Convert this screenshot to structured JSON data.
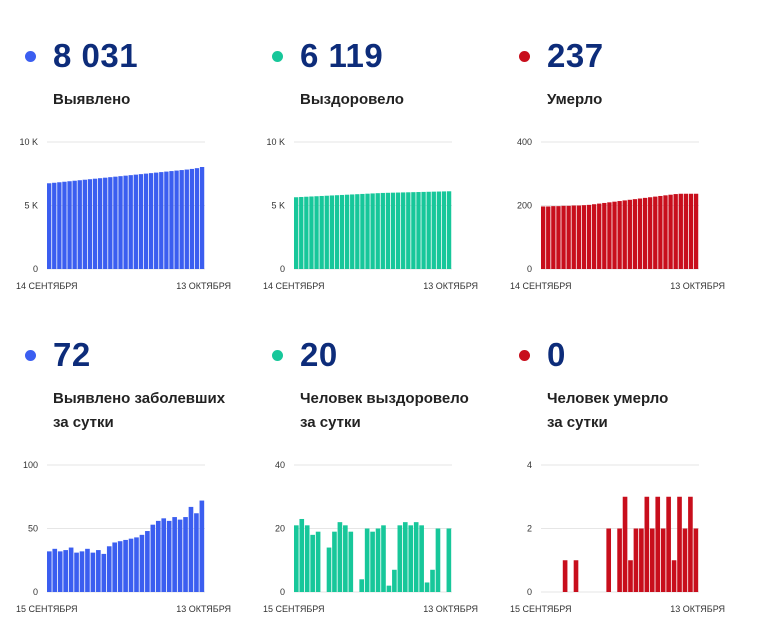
{
  "colors": {
    "blue": "#3b5ef0",
    "teal": "#17c79a",
    "red": "#c80e1c",
    "number": "#0d2c7a"
  },
  "cards": [
    {
      "number": "8 031",
      "label_line1": "Выявлено",
      "label_line2": "",
      "color": "#3b5ef0",
      "icon": "blue-dot-icon"
    },
    {
      "number": "6 119",
      "label_line1": "Выздоровело",
      "label_line2": "",
      "color": "#17c79a",
      "icon": "teal-dot-icon"
    },
    {
      "number": "237",
      "label_line1": "Умерло",
      "label_line2": "",
      "color": "#c80e1c",
      "icon": "red-dot-icon"
    },
    {
      "number": "72",
      "label_line1": "Выявлено заболевших",
      "label_line2": "за сутки",
      "color": "#3b5ef0",
      "icon": "blue-dot-icon"
    },
    {
      "number": "20",
      "label_line1": "Человек выздоровело",
      "label_line2": "за сутки",
      "color": "#17c79a",
      "icon": "teal-dot-icon"
    },
    {
      "number": "0",
      "label_line1": "Человек умерло",
      "label_line2": "за сутки",
      "color": "#c80e1c",
      "icon": "red-dot-icon"
    }
  ],
  "chart_data": [
    {
      "type": "bar",
      "color": "#3b5ef0",
      "x_start_label": "14 СЕНТЯБРЯ",
      "x_end_label": "13 ОКТЯБРЯ",
      "ylim": [
        0,
        10000
      ],
      "yticks": [
        0,
        5000,
        10000
      ],
      "ytick_labels": [
        "0",
        "5 K",
        "10 K"
      ],
      "values": [
        6750,
        6790,
        6830,
        6870,
        6910,
        6950,
        6990,
        7030,
        7070,
        7110,
        7150,
        7190,
        7230,
        7270,
        7310,
        7350,
        7390,
        7430,
        7470,
        7510,
        7550,
        7590,
        7630,
        7670,
        7710,
        7750,
        7790,
        7830,
        7880,
        7940,
        8031
      ]
    },
    {
      "type": "bar",
      "color": "#17c79a",
      "x_start_label": "14 СЕНТЯБРЯ",
      "x_end_label": "13 ОКТЯБРЯ",
      "ylim": [
        0,
        10000
      ],
      "yticks": [
        0,
        5000,
        10000
      ],
      "ytick_labels": [
        "0",
        "5 K",
        "10 K"
      ],
      "values": [
        5650,
        5670,
        5690,
        5710,
        5730,
        5750,
        5770,
        5790,
        5810,
        5830,
        5850,
        5870,
        5890,
        5910,
        5930,
        5950,
        5970,
        5990,
        6000,
        6010,
        6020,
        6030,
        6040,
        6050,
        6060,
        6070,
        6080,
        6090,
        6099,
        6109,
        6119
      ]
    },
    {
      "type": "bar",
      "color": "#c80e1c",
      "x_start_label": "14 СЕНТЯБРЯ",
      "x_end_label": "13 ОКТЯБРЯ",
      "ylim": [
        0,
        400
      ],
      "yticks": [
        0,
        200,
        400
      ],
      "ytick_labels": [
        "0",
        "200",
        "400"
      ],
      "values": [
        197,
        197,
        198,
        198,
        199,
        199,
        200,
        200,
        201,
        202,
        204,
        206,
        208,
        210,
        212,
        214,
        216,
        218,
        220,
        222,
        224,
        226,
        228,
        230,
        232,
        234,
        236,
        237,
        237,
        237,
        237
      ]
    },
    {
      "type": "bar",
      "color": "#3b5ef0",
      "x_start_label": "15 СЕНТЯБРЯ",
      "x_end_label": "13 ОКТЯБРЯ",
      "ylim": [
        0,
        100
      ],
      "yticks": [
        0,
        50,
        100
      ],
      "ytick_labels": [
        "0",
        "50",
        "100"
      ],
      "values": [
        32,
        34,
        32,
        33,
        35,
        31,
        32,
        34,
        31,
        33,
        30,
        36,
        39,
        40,
        41,
        42,
        43,
        45,
        48,
        53,
        56,
        58,
        56,
        59,
        57,
        59,
        67,
        62,
        72
      ]
    },
    {
      "type": "bar",
      "color": "#17c79a",
      "x_start_label": "15 СЕНТЯБРЯ",
      "x_end_label": "13 ОКТЯБРЯ",
      "ylim": [
        0,
        40
      ],
      "yticks": [
        0,
        20,
        40
      ],
      "ytick_labels": [
        "0",
        "20",
        "40"
      ],
      "values": [
        21,
        23,
        21,
        18,
        19,
        0,
        14,
        19,
        22,
        21,
        19,
        0,
        4,
        20,
        19,
        20,
        21,
        2,
        7,
        21,
        22,
        21,
        22,
        21,
        3,
        7,
        20,
        0,
        20
      ]
    },
    {
      "type": "bar",
      "color": "#c80e1c",
      "x_start_label": "15 СЕНТЯБРЯ",
      "x_end_label": "13 ОКТЯБРЯ",
      "ylim": [
        0,
        4
      ],
      "yticks": [
        0,
        2,
        4
      ],
      "ytick_labels": [
        "0",
        "2",
        "4"
      ],
      "values": [
        0,
        0,
        0,
        0,
        1,
        0,
        1,
        0,
        0,
        0,
        0,
        0,
        2,
        0,
        2,
        3,
        1,
        2,
        2,
        3,
        2,
        3,
        2,
        3,
        1,
        3,
        2,
        3,
        2
      ]
    }
  ]
}
